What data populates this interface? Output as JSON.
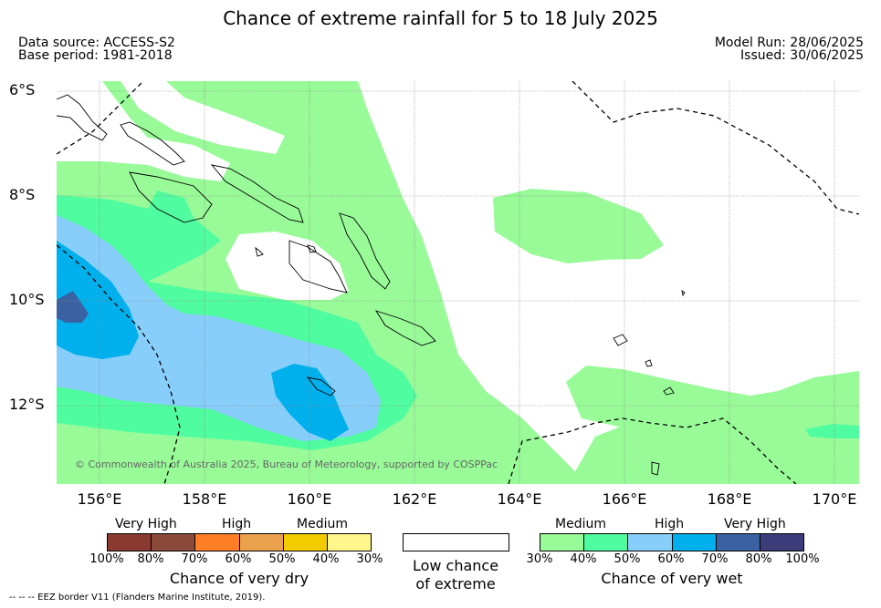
{
  "title": "Chance of extreme rainfall for 5 to 18 July 2025",
  "data_source": "Data source: ACCESS-S2",
  "base_period": "Base period: 1981-2018",
  "model_run": "Model Run: 28/06/2025",
  "issued": "Issued: 30/06/2025",
  "lat_labels": [
    "6°S",
    "8°S",
    "10°S",
    "12°S"
  ],
  "lon_labels": [
    "156°E",
    "158°E",
    "160°E",
    "162°E",
    "164°E",
    "166°E",
    "168°E",
    "170°E"
  ],
  "copyright": "© Commonwealth of Australia 2025, Bureau of Meteorology, supported by COSPPac",
  "dry_legend": {
    "headers": [
      "Very High",
      "High",
      "Medium"
    ],
    "ticks": [
      "100%",
      "80%",
      "70%",
      "60%",
      "50%",
      "40%",
      "30%"
    ],
    "title": "Chance of very dry",
    "colors": [
      "#8b3a2f",
      "#8b4a3a",
      "#ff7f27",
      "#eba04c",
      "#f2cb00",
      "#fff68c"
    ]
  },
  "low_legend": {
    "line1": "Low chance",
    "line2": "of extreme"
  },
  "wet_legend": {
    "headers": [
      "Medium",
      "High",
      "Very High"
    ],
    "ticks": [
      "30%",
      "40%",
      "50%",
      "60%",
      "70%",
      "80%",
      "100%"
    ],
    "title": "Chance of very wet",
    "colors": [
      "#98fb98",
      "#50fca0",
      "#87cefa",
      "#00b0ec",
      "#3a62a2",
      "#3c3c7a"
    ]
  },
  "footer": "--  --  -- EEZ border V11 (Flanders Marine Institute, 2019).",
  "map_colors": {
    "medium_wet": "#98fb98",
    "high_wet_40_50": "#50fca0",
    "high_wet_50_60": "#87cefa",
    "very_high_60_70": "#00b0ec",
    "very_high_70_80": "#3a62a2"
  }
}
